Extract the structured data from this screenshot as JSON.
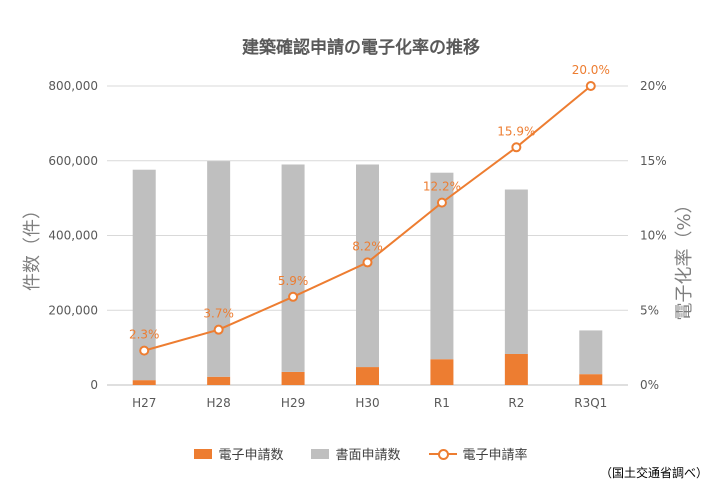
{
  "chart_data": {
    "type": "bar",
    "title": "建築確認申請の電子化率の推移",
    "xlabel": "",
    "ylabel": "件数（件）",
    "y2label": "電子化率（%）",
    "categories": [
      "H27",
      "H28",
      "H29",
      "H30",
      "R1",
      "R2",
      "R3Q1"
    ],
    "ylim": [
      0,
      800000
    ],
    "yticks": [
      "0",
      "200,000",
      "400,000",
      "600,000",
      "800,000"
    ],
    "y2lim": [
      0,
      20
    ],
    "y2ticks": [
      "0%",
      "5%",
      "10%",
      "15%",
      "20%"
    ],
    "stacked": true,
    "grid": true,
    "legend_position": "bottom",
    "series": [
      {
        "name": "電子申請数",
        "kind": "bar",
        "axis": "left",
        "values": [
          13000,
          22000,
          35000,
          48000,
          69000,
          83000,
          29000
        ],
        "color": "#ED7D31"
      },
      {
        "name": "書面申請数",
        "kind": "bar",
        "axis": "left",
        "values": [
          563000,
          577000,
          555000,
          542000,
          499000,
          440000,
          117000
        ],
        "color": "#BFBFBF"
      },
      {
        "name": "電子申請率",
        "kind": "line",
        "axis": "right",
        "values": [
          2.3,
          3.7,
          5.9,
          8.2,
          12.2,
          15.9,
          20.0
        ],
        "labels": [
          "2.3%",
          "3.7%",
          "5.9%",
          "8.2%",
          "12.2%",
          "15.9%",
          "20.0%"
        ],
        "color": "#ED7D31"
      }
    ]
  },
  "source_note": "（国土交通省調べ）"
}
